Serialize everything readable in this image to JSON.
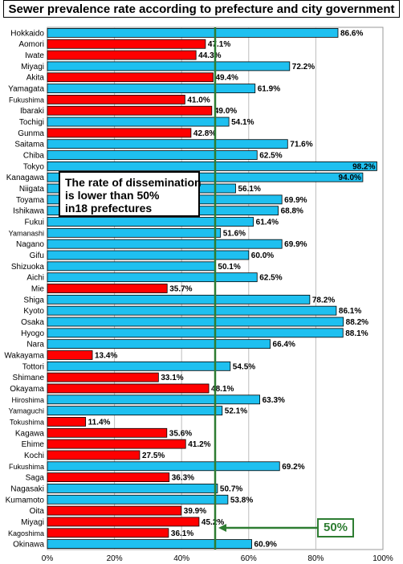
{
  "chart_data": {
    "type": "bar",
    "orientation": "horizontal",
    "title": "Sewer prevalence rate according to prefecture and city government",
    "xlim": [
      0,
      100
    ],
    "x_ticks": [
      "0%",
      "20%",
      "40%",
      "60%",
      "80%",
      "100%"
    ],
    "grid": true,
    "reference_line": {
      "value": 50,
      "label": "50%",
      "color": "#2e7d32"
    },
    "annotation": [
      "The rate of dissemination",
      "is lower than 50%",
      "in18 prefectures"
    ],
    "colors": {
      "above_50": "#1ec0f0",
      "below_50": "#ff0000"
    },
    "categories": [
      "Hokkaido",
      "Aomori",
      "Iwate",
      "Miyagi",
      "Akita",
      "Yamagata",
      "Fukushima",
      "Ibaraki",
      "Tochigi",
      "Gunma",
      "Saitama",
      "Chiba",
      "Tokyo",
      "Kanagawa",
      "Niigata",
      "Toyama",
      "Ishikawa",
      "Fukui",
      "Yamanashi",
      "Nagano",
      "Gifu",
      "Shizuoka",
      "Aichi",
      "Mie",
      "Shiga",
      "Kyoto",
      "Osaka",
      "Hyogo",
      "Nara",
      "Wakayama",
      "Tottori",
      "Shimane",
      "Okayama",
      "Hiroshima",
      "Yamaguchi",
      "Tokushima",
      "Kagawa",
      "Ehime",
      "Kochi",
      "Fukushima",
      "Saga",
      "Nagasaki",
      "Kumamoto",
      "Oita",
      "Miyagi",
      "Kagoshima",
      "Okinawa"
    ],
    "values": [
      86.6,
      47.1,
      44.3,
      72.2,
      49.4,
      61.9,
      41.0,
      49.0,
      54.1,
      42.8,
      71.6,
      62.5,
      98.2,
      94.0,
      56.1,
      69.9,
      68.8,
      61.4,
      51.6,
      69.9,
      60.0,
      50.1,
      62.5,
      35.7,
      78.2,
      86.1,
      88.2,
      88.1,
      66.4,
      13.4,
      54.5,
      33.1,
      48.1,
      63.3,
      52.1,
      11.4,
      35.6,
      41.2,
      27.5,
      69.2,
      36.3,
      50.7,
      53.8,
      39.9,
      45.2,
      36.1,
      60.9
    ],
    "labels": [
      "86.6%",
      "47.1%",
      "44.3%",
      "72.2%",
      "49.4%",
      "61.9%",
      "41.0%",
      "49.0%",
      "54.1%",
      "42.8%",
      "71.6%",
      "62.5%",
      "98.2%",
      "94.0%",
      "56.1%",
      "69.9%",
      "68.8%",
      "61.4%",
      "51.6%",
      "69.9%",
      "60.0%",
      "50.1%",
      "62.5%",
      "35.7%",
      "78.2%",
      "86.1%",
      "88.2%",
      "88.1%",
      "66.4%",
      "13.4%",
      "54.5%",
      "33.1%",
      "48.1%",
      "63.3%",
      "52.1%",
      "11.4%",
      "35.6%",
      "41.2%",
      "27.5%",
      "69.2%",
      "36.3%",
      "50.7%",
      "53.8%",
      "39.9%",
      "45.2%",
      "36.1%",
      "60.9%"
    ]
  }
}
